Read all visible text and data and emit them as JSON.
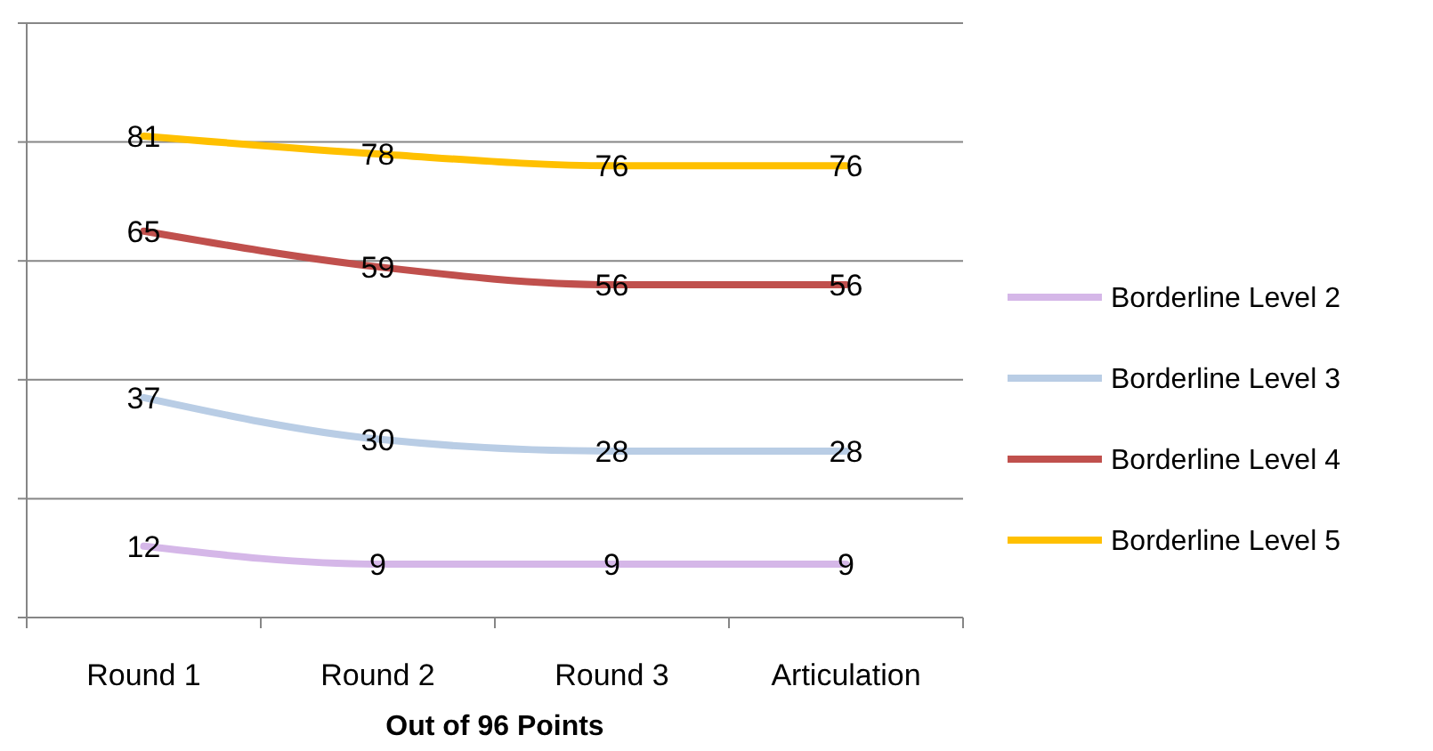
{
  "chart_data": {
    "type": "line",
    "xlabel": "Out of 96 Points",
    "categories": [
      "Round 1",
      "Round 2",
      "Round 3",
      "Articulation"
    ],
    "series": [
      {
        "name": "Borderline Level 2",
        "color": "#d5b7e8",
        "values": [
          12,
          9,
          9,
          9
        ]
      },
      {
        "name": "Borderline Level 3",
        "color": "#b9cde5",
        "values": [
          37,
          30,
          28,
          28
        ]
      },
      {
        "name": "Borderline Level 4",
        "color": "#c0504d",
        "values": [
          65,
          59,
          56,
          56
        ]
      },
      {
        "name": "Borderline Level 5",
        "color": "#ffc000",
        "values": [
          81,
          78,
          76,
          76
        ]
      }
    ],
    "ylim": [
      0,
      100
    ],
    "yticks": [
      {
        "value": 0,
        "label": null
      },
      {
        "value": 20,
        "label": null
      },
      {
        "value": 40,
        "label": null
      },
      {
        "value": 60,
        "label": null
      },
      {
        "value": 80,
        "label": null
      },
      {
        "value": 100,
        "label": null
      }
    ],
    "tick_labels": "x",
    "grid": "y",
    "legend": "right",
    "data_labels": true,
    "marker": "none",
    "line_style": "solid"
  }
}
